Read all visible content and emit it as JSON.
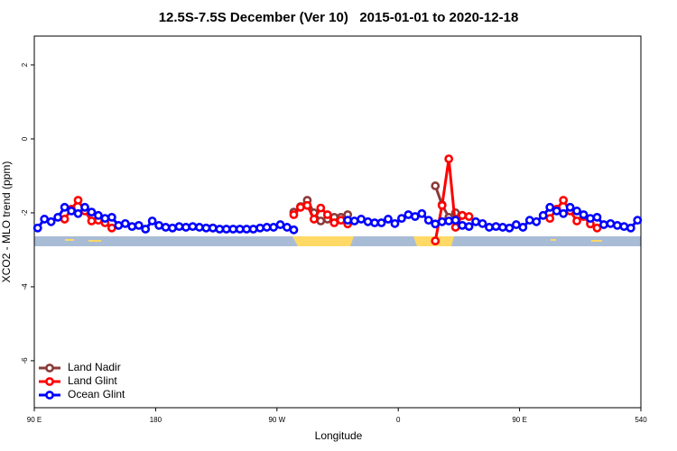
{
  "chart_data": {
    "type": "line",
    "title": "12.5S-7.5S December (Ver 10)   2015-01-01 to 2020-12-18",
    "xlabel": "Longitude",
    "ylabel": "XCO2 - MLO trend (ppm)",
    "xlim": [
      90,
      540
    ],
    "xticks": [
      {
        "value": 90,
        "label": "90 E"
      },
      180,
      {
        "value": 270,
        "label": "90 W"
      },
      {
        "value": 360,
        "label": "0"
      },
      {
        "value": 450,
        "label": "90 E"
      },
      540
    ],
    "ylim": [
      -7.27,
      2.78
    ],
    "yticks": [
      -6,
      -4,
      -2,
      0,
      2
    ],
    "legend": "bottom-left",
    "x": [
      92.5,
      97.5,
      102.5,
      107.5,
      112.5,
      117.5,
      122.5,
      127.5,
      132.5,
      137.5,
      142.5,
      147.5,
      152.5,
      157.5,
      162.5,
      167.5,
      172.5,
      177.5,
      182.5,
      187.5,
      192.5,
      197.5,
      202.5,
      207.5,
      212.5,
      217.5,
      222.5,
      227.5,
      232.5,
      237.5,
      242.5,
      247.5,
      252.5,
      257.5,
      262.5,
      267.5,
      272.5,
      277.5,
      282.5,
      287.5,
      292.5,
      297.5,
      302.5,
      307.5,
      312.5,
      317.5,
      322.5,
      327.5,
      332.5,
      337.5,
      342.5,
      347.5,
      352.5,
      357.5,
      362.5,
      367.5,
      372.5,
      377.5,
      382.5,
      387.5,
      392.5,
      397.5,
      402.5,
      407.5,
      412.5,
      417.5,
      422.5,
      427.5,
      432.5,
      437.5,
      442.5,
      447.5,
      452.5,
      457.5,
      462.5,
      467.5,
      472.5,
      477.5,
      482.5,
      487.5,
      492.5,
      497.5,
      502.5,
      507.5,
      512.5,
      517.5,
      522.5,
      527.5,
      532.5,
      537.5
    ],
    "series": [
      {
        "name": "Land Nadir",
        "color": "#8b3a3a",
        "values": [
          null,
          null,
          null,
          null,
          null,
          null,
          null,
          null,
          null,
          null,
          null,
          null,
          null,
          null,
          null,
          null,
          null,
          null,
          null,
          null,
          null,
          null,
          null,
          null,
          null,
          null,
          null,
          null,
          null,
          null,
          null,
          null,
          null,
          null,
          null,
          null,
          null,
          null,
          -1.98,
          -1.83,
          -1.66,
          -2.0,
          -2.22,
          -2.17,
          -2.12,
          -2.12,
          -2.05,
          null,
          null,
          null,
          null,
          null,
          null,
          null,
          null,
          null,
          null,
          null,
          null,
          -1.27,
          -1.78,
          -2.12,
          -2.0,
          -2.07,
          null,
          null,
          null,
          null,
          null,
          null,
          null,
          null,
          null,
          null,
          null,
          null,
          null,
          null,
          null,
          null,
          null,
          null,
          null,
          null,
          null,
          null,
          null,
          null,
          null,
          null
        ]
      },
      {
        "name": "Land Glint",
        "color": "#ff0000",
        "values": [
          null,
          null,
          null,
          null,
          -2.17,
          -1.9,
          -1.66,
          -1.95,
          -2.22,
          -2.2,
          -2.27,
          -2.41,
          null,
          null,
          null,
          null,
          null,
          null,
          null,
          null,
          null,
          null,
          null,
          null,
          null,
          null,
          -2.41,
          null,
          null,
          null,
          null,
          null,
          null,
          null,
          null,
          null,
          null,
          null,
          -2.05,
          -1.85,
          -1.8,
          -2.17,
          -1.87,
          -2.05,
          -2.27,
          -2.2,
          -2.3,
          null,
          null,
          null,
          null,
          null,
          null,
          null,
          null,
          null,
          null,
          null,
          null,
          -2.76,
          -1.8,
          -0.54,
          -2.39,
          -2.07,
          -2.1,
          null,
          null,
          null,
          null,
          null,
          null,
          null,
          null,
          null,
          null,
          null,
          -2.15,
          -1.9,
          -1.66,
          -1.95,
          -2.22,
          -2.1,
          -2.3,
          -2.41,
          null,
          null,
          null,
          null,
          null,
          null
        ]
      },
      {
        "name": "Ocean Glint",
        "color": "#0000ff",
        "values": [
          -2.41,
          -2.17,
          -2.24,
          -2.12,
          -1.85,
          -1.95,
          -2.02,
          -1.85,
          -1.98,
          -2.07,
          -2.15,
          -2.12,
          -2.34,
          -2.29,
          -2.37,
          -2.34,
          -2.44,
          -2.22,
          -2.34,
          -2.39,
          -2.41,
          -2.37,
          -2.39,
          -2.37,
          -2.39,
          -2.41,
          -2.41,
          -2.44,
          -2.44,
          -2.44,
          -2.44,
          -2.44,
          -2.44,
          -2.41,
          -2.39,
          -2.39,
          -2.32,
          -2.39,
          -2.46,
          null,
          null,
          null,
          null,
          null,
          null,
          null,
          -2.2,
          -2.22,
          -2.17,
          -2.24,
          -2.27,
          -2.27,
          -2.17,
          -2.29,
          -2.15,
          -2.05,
          -2.1,
          -2.02,
          -2.2,
          -2.3,
          -2.24,
          -2.22,
          -2.2,
          -2.34,
          -2.37,
          -2.24,
          -2.29,
          -2.39,
          -2.37,
          -2.39,
          -2.41,
          -2.32,
          -2.39,
          -2.2,
          -2.24,
          -2.07,
          -1.85,
          -1.95,
          -2.02,
          -1.85,
          -1.95,
          -2.05,
          -2.15,
          -2.12,
          -2.32,
          -2.29,
          -2.34,
          -2.37,
          -2.41,
          -2.2
        ]
      }
    ]
  }
}
